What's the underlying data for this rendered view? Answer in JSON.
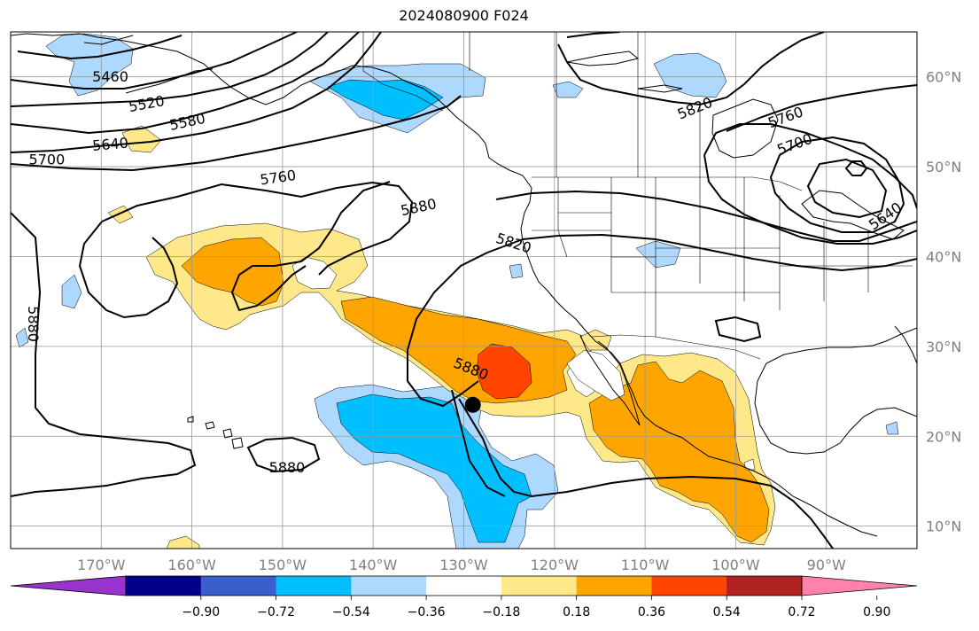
{
  "title": "2024080900 F024",
  "map": {
    "lon_min": -180,
    "lon_max": -80,
    "lat_min": 7.5,
    "lat_max": 65,
    "lon_ticks": [
      {
        "v": -170,
        "label": "170°W"
      },
      {
        "v": -160,
        "label": "160°W"
      },
      {
        "v": -150,
        "label": "150°W"
      },
      {
        "v": -140,
        "label": "140°W"
      },
      {
        "v": -130,
        "label": "130°W"
      },
      {
        "v": -120,
        "label": "120°W"
      },
      {
        "v": -110,
        "label": "110°W"
      },
      {
        "v": -100,
        "label": "100°W"
      },
      {
        "v": -90,
        "label": "90°W"
      }
    ],
    "lat_ticks": [
      {
        "v": 10,
        "label": "10°N"
      },
      {
        "v": 20,
        "label": "20°N"
      },
      {
        "v": 30,
        "label": "30°N"
      },
      {
        "v": 40,
        "label": "40°N"
      },
      {
        "v": 50,
        "label": "50°N"
      },
      {
        "v": 60,
        "label": "60°N"
      }
    ],
    "contour_labels": [
      {
        "text": "5460",
        "lon": -169,
        "lat": 60,
        "angle": 0
      },
      {
        "text": "5520",
        "lon": -165,
        "lat": 57,
        "angle": -10
      },
      {
        "text": "5580",
        "lon": -160.5,
        "lat": 55,
        "angle": -12
      },
      {
        "text": "5640",
        "lon": -169,
        "lat": 52.5,
        "angle": -5
      },
      {
        "text": "5700",
        "lon": -176,
        "lat": 50.8,
        "angle": 0
      },
      {
        "text": "5760",
        "lon": -150.5,
        "lat": 48.8,
        "angle": -8
      },
      {
        "text": "5880",
        "lon": -135,
        "lat": 45.5,
        "angle": -12
      },
      {
        "text": "5820",
        "lon": -124.5,
        "lat": 41.5,
        "angle": 18
      },
      {
        "text": "5820",
        "lon": -104.5,
        "lat": 56.5,
        "angle": -22
      },
      {
        "text": "5760",
        "lon": -94.5,
        "lat": 55.5,
        "angle": -20
      },
      {
        "text": "5700",
        "lon": -93.5,
        "lat": 52.5,
        "angle": -20
      },
      {
        "text": "5640",
        "lon": -83.5,
        "lat": 44.5,
        "angle": -35
      },
      {
        "text": "5880",
        "lon": -177.5,
        "lat": 32.5,
        "angle": 90
      },
      {
        "text": "5880",
        "lon": -129.2,
        "lat": 27.5,
        "angle": 22
      },
      {
        "text": "5880",
        "lon": -149.5,
        "lat": 16.5,
        "angle": 0
      }
    ],
    "marker": {
      "lon": -129,
      "lat": 23.5
    }
  },
  "colorbar": {
    "colors": [
      "#9a32cd",
      "#00008b",
      "#3a5fcd",
      "#00bfff",
      "#add8ff",
      "#ffffff",
      "#ffe88a",
      "#ffa500",
      "#ff4500",
      "#b22222",
      "#ff82ab"
    ],
    "tick_labels": [
      "−0.90",
      "−0.72",
      "−0.54",
      "−0.36",
      "−0.18",
      "0.18",
      "0.36",
      "0.54",
      "0.72",
      "0.90"
    ]
  }
}
